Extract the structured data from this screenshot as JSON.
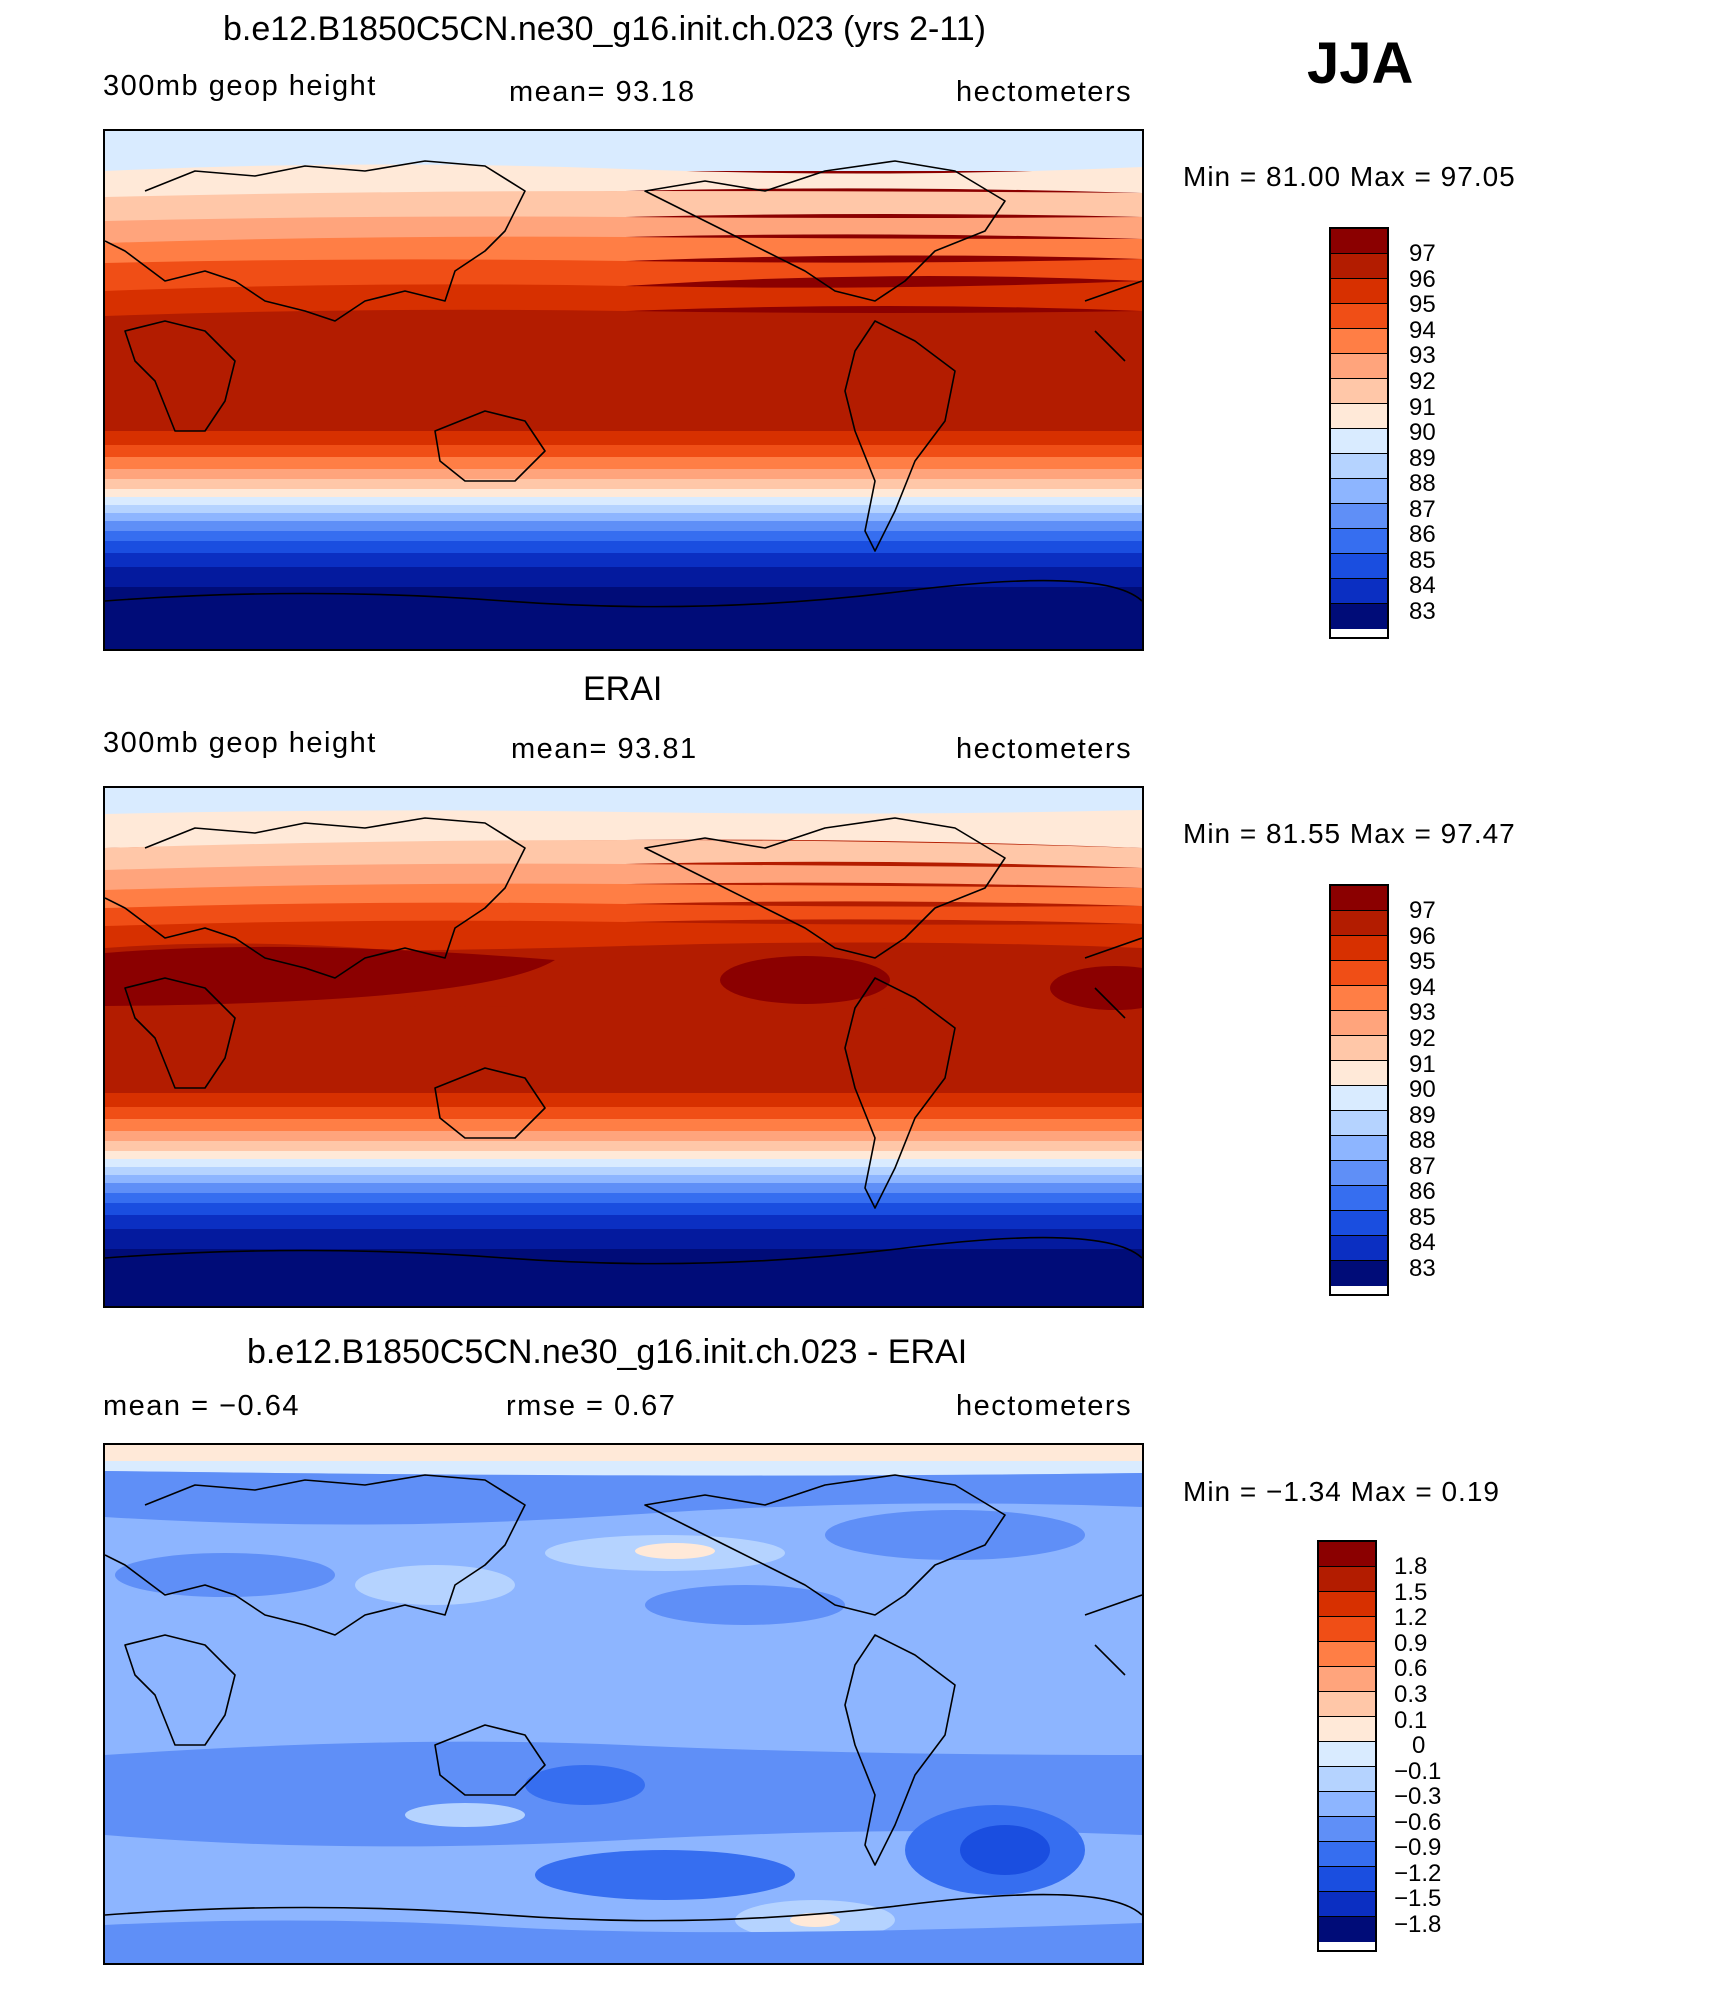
{
  "season": "JJA",
  "colors": {
    "abs_scale": [
      "#8b0000",
      "#b31c00",
      "#d73000",
      "#f04e16",
      "#ff7e45",
      "#ffa47c",
      "#ffc7a8",
      "#ffe9d8",
      "#d9ebff",
      "#b5d3ff",
      "#8db5ff",
      "#5f8ff7",
      "#366ef0",
      "#1a4ee0",
      "#0b2fc2",
      "#041a9e",
      "#000c78"
    ],
    "diff_scale": [
      "#8b0000",
      "#b31c00",
      "#d73000",
      "#f04e16",
      "#ff7e45",
      "#ffa47c",
      "#ffc7a8",
      "#ffe9d8",
      "#d9ebff",
      "#b5d3ff",
      "#8db5ff",
      "#5f8ff7",
      "#366ef0",
      "#1a4ee0",
      "#0b2fc2",
      "#041a9e",
      "#000c78"
    ]
  },
  "panels": [
    {
      "title": "b.e12.B1850C5CN.ne30_g16.init.ch.023 (yrs 2-11)",
      "left_label": "300mb  geop  height",
      "center_label": "mean=   93.18",
      "right_label": "hectometers",
      "minmax": "Min  =    81.00  Max  =    97.05",
      "colorbar_labels": [
        "97",
        "96",
        "95",
        "94",
        "93",
        "92",
        "91",
        "90",
        "89",
        "88",
        "87",
        "86",
        "85",
        "84",
        "83"
      ]
    },
    {
      "title": "ERAI",
      "left_label": "300mb  geop  height",
      "center_label": "mean=   93.81",
      "right_label": "hectometers",
      "minmax": "Min  =    81.55  Max  =    97.47",
      "colorbar_labels": [
        "97",
        "96",
        "95",
        "94",
        "93",
        "92",
        "91",
        "90",
        "89",
        "88",
        "87",
        "86",
        "85",
        "84",
        "83"
      ]
    },
    {
      "title": "b.e12.B1850C5CN.ne30_g16.init.ch.023 - ERAI",
      "left_label": "mean  =    −0.64",
      "center_label": "rmse  =     0.67",
      "right_label": "hectometers",
      "minmax": "Min  =   −1.34  Max  =     0.19",
      "colorbar_labels": [
        "1.8",
        "1.5",
        "1.2",
        "0.9",
        "0.6",
        "0.3",
        "0.1",
        "0",
        "−0.1",
        "−0.3",
        "−0.6",
        "−0.9",
        "−1.2",
        "−1.5",
        "−1.8"
      ]
    }
  ]
}
